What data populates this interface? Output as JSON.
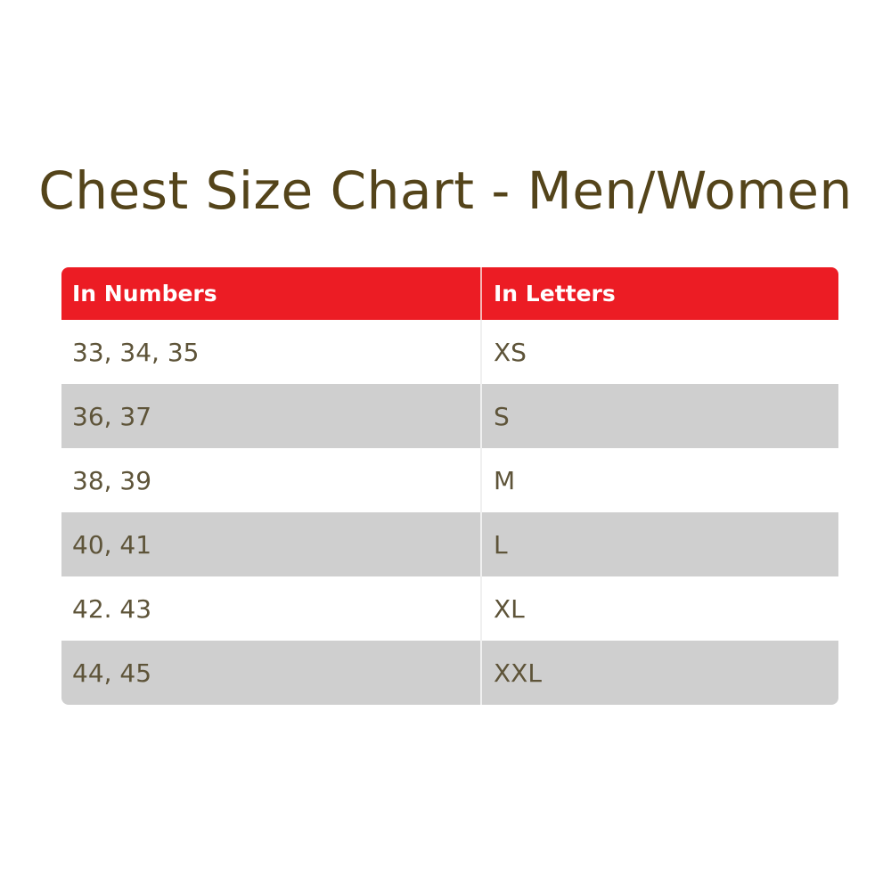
{
  "title": "Chest Size Chart - Men/Women",
  "colors": {
    "header": "#ec1c24",
    "stripe": "#cfcfcf",
    "text": "#5e5439",
    "title": "#54441a"
  },
  "table": {
    "headers": [
      "In Numbers",
      "In Letters"
    ],
    "rows": [
      [
        "33, 34, 35",
        "XS"
      ],
      [
        "36, 37",
        "S"
      ],
      [
        "38, 39",
        "M"
      ],
      [
        "40, 41",
        "L"
      ],
      [
        "42. 43",
        "XL"
      ],
      [
        "44, 45",
        "XXL"
      ]
    ]
  }
}
